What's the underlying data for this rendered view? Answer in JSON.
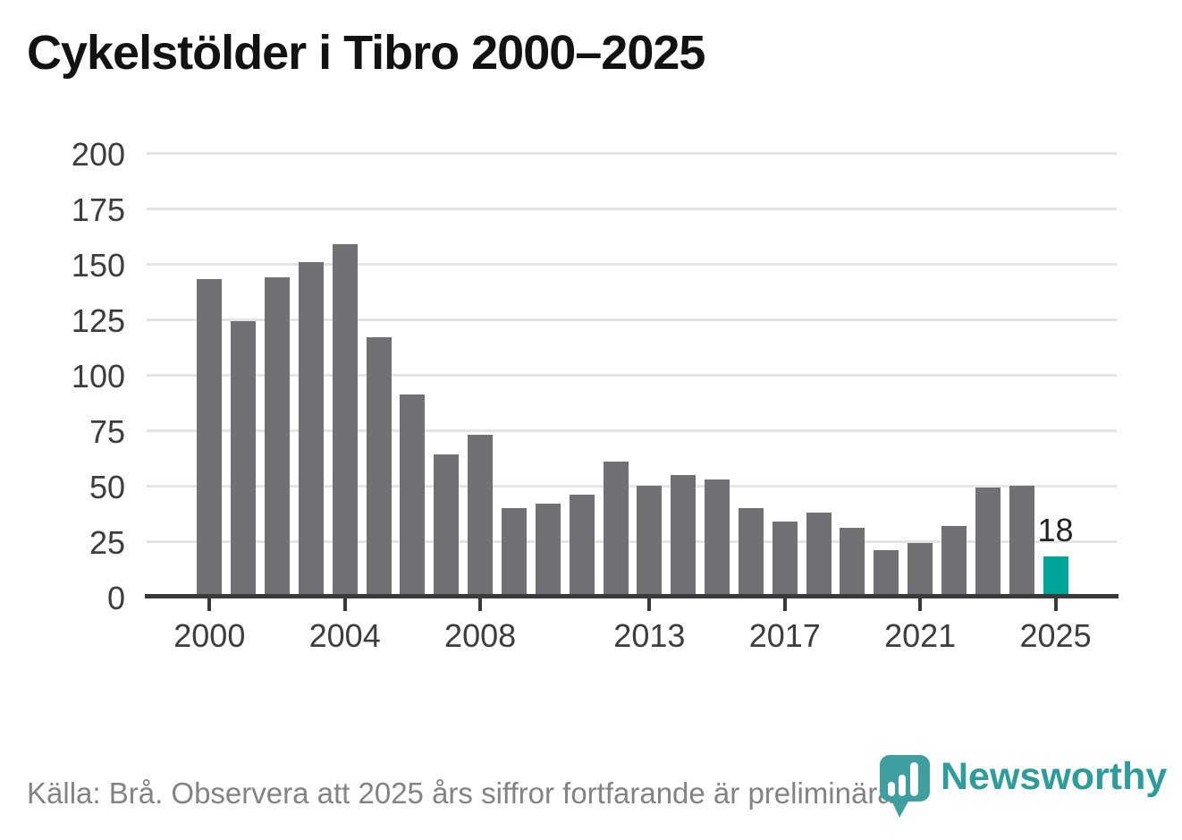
{
  "title": "Cykelstölder i Tibro 2000–2025",
  "chart_data": {
    "type": "bar",
    "title": "Cykelstölder i Tibro 2000–2025",
    "categories": [
      2000,
      2001,
      2002,
      2003,
      2004,
      2005,
      2006,
      2007,
      2008,
      2009,
      2010,
      2011,
      2012,
      2013,
      2014,
      2015,
      2016,
      2017,
      2018,
      2019,
      2020,
      2021,
      2022,
      2023,
      2024,
      2025
    ],
    "values": [
      143,
      124,
      144,
      151,
      159,
      117,
      91,
      64,
      73,
      40,
      42,
      46,
      61,
      50,
      55,
      53,
      40,
      34,
      38,
      31,
      21,
      24,
      32,
      49,
      50,
      18
    ],
    "xlabel": "",
    "ylabel": "",
    "ylim": [
      0,
      200
    ],
    "yticks": [
      0,
      25,
      50,
      75,
      100,
      125,
      150,
      175,
      200
    ],
    "xticks": [
      2000,
      2004,
      2008,
      2013,
      2017,
      2021,
      2025
    ],
    "grid": "horizontal",
    "legend": "none",
    "bar_color": "#707075",
    "highlight_index": 25,
    "highlight_color": "#00a49a",
    "highlight_value_label": "18"
  },
  "footer": {
    "source_note": "Källa: Brå. Observera att 2025 års siffror fortfarande är preliminära."
  },
  "logo": {
    "text": "Newsworthy",
    "color": "#2f9c9c",
    "icon": "newsworthy-bar-chart-pin-icon"
  }
}
